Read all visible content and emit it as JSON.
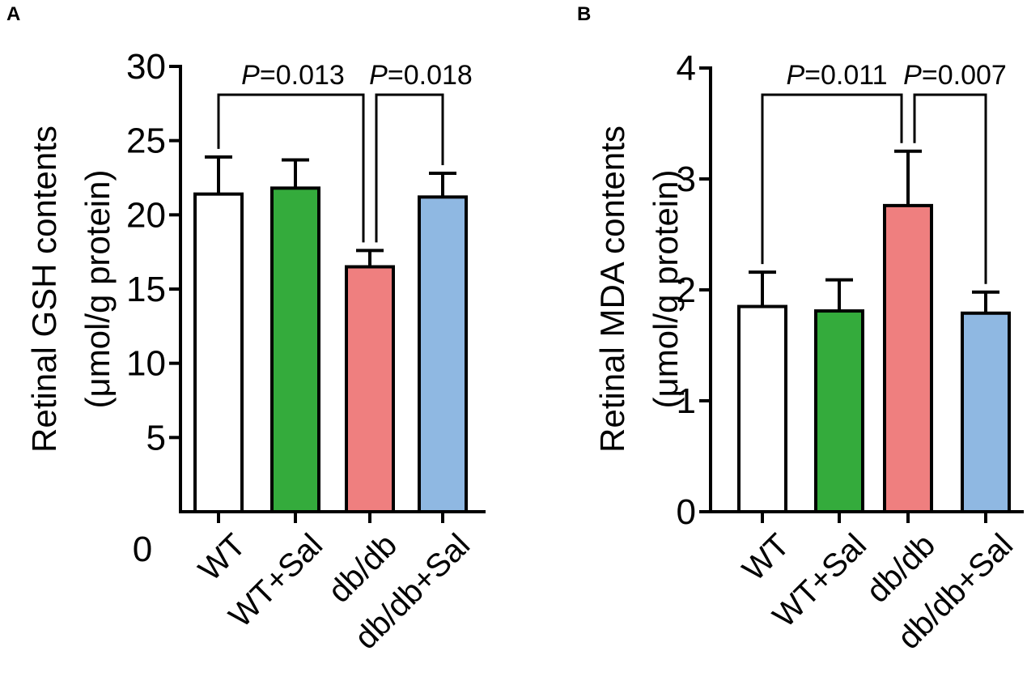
{
  "chart_data": [
    {
      "type": "bar",
      "panel": "A",
      "ylabel_line1": "Retinal GSH contents",
      "ylabel_line2": "(μmol/g protein)",
      "categories": [
        "WT",
        "WT+Sal",
        "db/db",
        "db/db+Sal"
      ],
      "values": [
        21.4,
        21.8,
        16.5,
        21.2
      ],
      "errors": [
        2.5,
        1.9,
        1.1,
        1.6
      ],
      "colors": [
        "#ffffff",
        "#34ab3c",
        "#ef7f7f",
        "#8fb8e2"
      ],
      "ylim": [
        0,
        30
      ],
      "yticks": [
        "0",
        "5",
        "10",
        "15",
        "20",
        "25",
        "30"
      ],
      "comparisons": [
        {
          "pair": [
            0,
            2
          ],
          "label_italic": "P",
          "label_rest": "=0.013"
        },
        {
          "pair": [
            2,
            3
          ],
          "label_italic": "P",
          "label_rest": "=0.018"
        }
      ]
    },
    {
      "type": "bar",
      "panel": "B",
      "ylabel_line1": "Retinal MDA contents",
      "ylabel_line2": "(μmol/g protein)",
      "categories": [
        "WT",
        "WT+Sal",
        "db/db",
        "db/db+Sal"
      ],
      "values": [
        1.85,
        1.81,
        2.76,
        1.79
      ],
      "errors": [
        0.31,
        0.28,
        0.49,
        0.19
      ],
      "colors": [
        "#ffffff",
        "#34ab3c",
        "#ef7f7f",
        "#8fb8e2"
      ],
      "ylim": [
        0,
        4
      ],
      "yticks": [
        "0",
        "1",
        "2",
        "3",
        "4"
      ],
      "comparisons": [
        {
          "pair": [
            0,
            2
          ],
          "label_italic": "P",
          "label_rest": "=0.011"
        },
        {
          "pair": [
            2,
            3
          ],
          "label_italic": "P",
          "label_rest": "=0.007"
        }
      ]
    }
  ]
}
